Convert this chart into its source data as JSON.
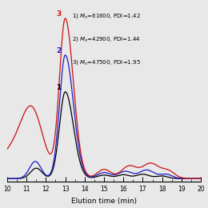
{
  "xlim": [
    10,
    20
  ],
  "ylim": [
    -0.02,
    1.05
  ],
  "xlabel": "Elution time (min)",
  "curve1_color": "black",
  "curve2_color": "#1a1acd",
  "curve3_color": "#cc1111",
  "legend_lines": [
    "1) $M_n$=61600, PDI=1.42",
    "2) $M_n$=42900, PDI=1.44",
    "3) $M_n$=47500, PDI=1.95"
  ],
  "label1": "1",
  "label2": "2",
  "label3": "3",
  "fig_bg": "#e8e8e8"
}
